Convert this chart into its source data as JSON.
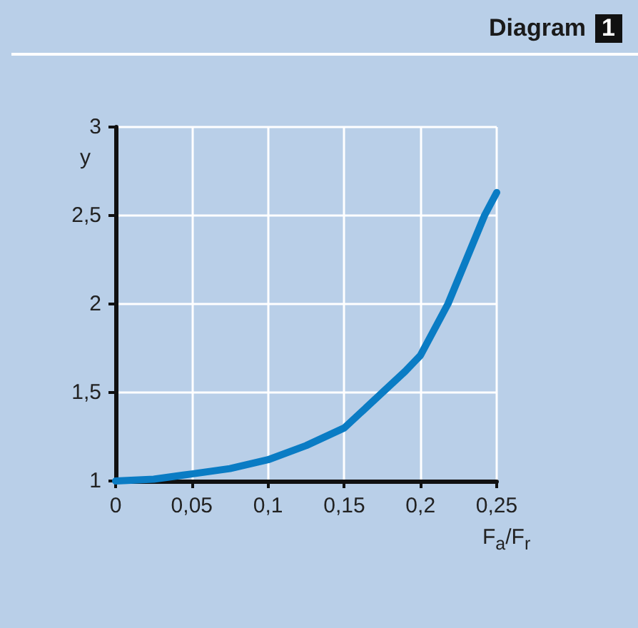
{
  "chart_data": {
    "type": "line",
    "title": "Diagram 1",
    "xlabel": "F$_{a}$/F$_{r}$",
    "ylabel": "y",
    "x": [
      0,
      0.025,
      0.05,
      0.075,
      0.1,
      0.125,
      0.15,
      0.175,
      0.19,
      0.2,
      0.218,
      0.242,
      0.25
    ],
    "series": [
      {
        "color": "#0a7cc4",
        "values": [
          1,
          1.01,
          1.04,
          1.07,
          1.12,
          1.2,
          1.3,
          1.5,
          1.62,
          1.71,
          2.0,
          2.5,
          2.63
        ]
      }
    ],
    "xlim": [
      0,
      0.25
    ],
    "xticks": [
      0,
      {
        "value": 0.05,
        "label": "0,05"
      },
      {
        "value": 0.1,
        "label": "0,1"
      },
      {
        "value": 0.15,
        "label": "0,15"
      },
      {
        "value": 0.2,
        "label": "0,2"
      },
      {
        "value": 0.25,
        "label": "0,25"
      }
    ],
    "ylim": [
      1,
      3
    ],
    "yticks": [
      1,
      {
        "value": 1.5,
        "label": "1,5"
      },
      2,
      {
        "value": 2.5,
        "label": "2,5"
      },
      3
    ],
    "grid": true,
    "marker": "none",
    "line_style": "solid"
  }
}
